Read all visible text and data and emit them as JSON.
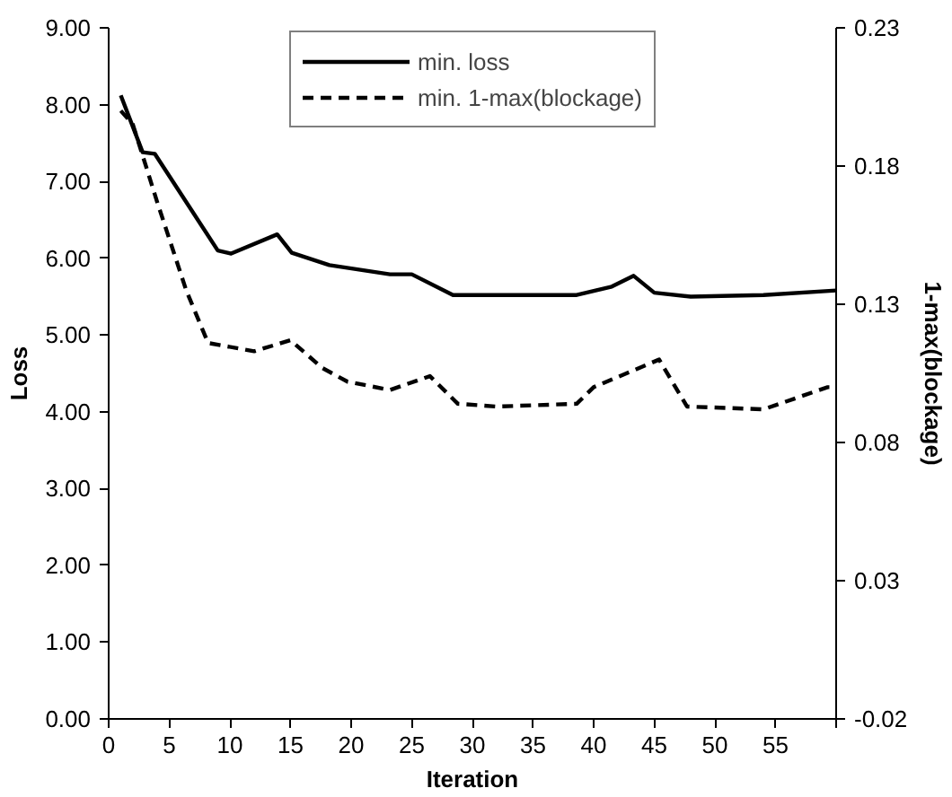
{
  "chart_data": {
    "type": "line",
    "xlabel": "Iteration",
    "ylabel": "Loss",
    "y2label": "1-max(blockage)",
    "xlim": [
      0,
      60
    ],
    "xticks": [
      0,
      5,
      10,
      15,
      20,
      25,
      30,
      35,
      40,
      45,
      50,
      55,
      {
        "value": 60,
        "label": null
      }
    ],
    "ylim": [
      0,
      9
    ],
    "yticks": [
      {
        "value": 0,
        "label": "0.00"
      },
      {
        "value": 1,
        "label": "1.00"
      },
      {
        "value": 2,
        "label": "2.00"
      },
      {
        "value": 3,
        "label": "3.00"
      },
      {
        "value": 4,
        "label": "4.00"
      },
      {
        "value": 5,
        "label": "5.00"
      },
      {
        "value": 6,
        "label": "6.00"
      },
      {
        "value": 7,
        "label": "7.00"
      },
      {
        "value": 8,
        "label": "8.00"
      },
      {
        "value": 9,
        "label": "9.00"
      }
    ],
    "y2lim": [
      -0.02,
      0.23
    ],
    "y2ticks": [
      -0.02,
      0.03,
      0.08,
      0.13,
      0.18,
      0.23
    ],
    "grid": false,
    "legend": "top",
    "marker": "none",
    "series": [
      {
        "name": "min. loss",
        "color": "#000000",
        "line_style": "solid",
        "x": [
          1,
          2.8,
          3.8,
          9,
          10.1,
          13.9,
          15.1,
          18.2,
          23.2,
          25,
          28.4,
          38.6,
          41.5,
          43.3,
          45,
          48,
          54,
          60
        ],
        "values": [
          8.12,
          7.38,
          7.36,
          6.1,
          6.06,
          6.31,
          6.07,
          5.91,
          5.79,
          5.79,
          5.52,
          5.52,
          5.63,
          5.77,
          5.55,
          5.5,
          5.52,
          5.58
        ]
      },
      {
        "name": "min. 1-max(blockage)",
        "color": "#000000",
        "line_style": "dashed",
        "axis": "y2",
        "x": [
          1,
          2,
          4,
          6.4,
          8.2,
          12,
          15,
          17.6,
          19.7,
          23.2,
          26.5,
          28.8,
          32,
          38.6,
          40,
          45.4,
          47.7,
          54,
          59.3,
          60
        ],
        "values": [
          0.2,
          0.195,
          0.167,
          0.135,
          0.116,
          0.113,
          0.117,
          0.107,
          0.102,
          0.099,
          0.104,
          0.094,
          0.093,
          0.094,
          0.1,
          0.11,
          0.093,
          0.092,
          0.1,
          0.1
        ]
      }
    ]
  }
}
